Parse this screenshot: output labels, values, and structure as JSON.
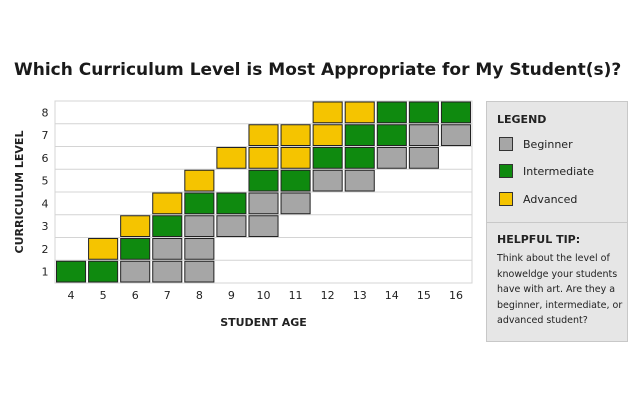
{
  "chart_data": {
    "type": "bar",
    "title": "Which Curriculum Level is Most Appropriate for My Student(s)?",
    "xlabel": "STUDENT AGE",
    "ylabel": "CURRICULUM LEVEL",
    "x": [
      4,
      5,
      6,
      7,
      8,
      9,
      10,
      11,
      12,
      13,
      14,
      15,
      16
    ],
    "y_ticks": [
      1,
      2,
      3,
      4,
      5,
      6,
      7,
      8
    ],
    "ylim": [
      0,
      8
    ],
    "grid": true,
    "legend_position": "right",
    "series": [
      {
        "name": "Beginner",
        "color": "#a6a6a6",
        "levels": [
          [],
          [],
          [
            1
          ],
          [
            1,
            2
          ],
          [
            1,
            2,
            3
          ],
          [
            3
          ],
          [
            3,
            4
          ],
          [
            4
          ],
          [
            5
          ],
          [
            5
          ],
          [
            6
          ],
          [
            6,
            7
          ],
          [
            7
          ]
        ]
      },
      {
        "name": "Intermediate",
        "color": "#0f8a0f",
        "levels": [
          [
            1
          ],
          [
            1
          ],
          [
            2
          ],
          [
            3
          ],
          [
            4
          ],
          [
            4
          ],
          [
            5
          ],
          [
            5
          ],
          [
            6
          ],
          [
            6,
            7
          ],
          [
            7,
            8
          ],
          [
            8
          ],
          [
            8
          ]
        ]
      },
      {
        "name": "Advanced",
        "color": "#f5c400",
        "levels": [
          [],
          [
            2
          ],
          [
            3
          ],
          [
            4
          ],
          [
            5
          ],
          [
            6
          ],
          [
            6,
            7
          ],
          [
            6,
            7
          ],
          [
            7,
            8
          ],
          [
            8
          ],
          [],
          [],
          []
        ]
      }
    ]
  },
  "legend": {
    "heading": "LEGEND",
    "items": [
      {
        "label": "Beginner",
        "color": "#a6a6a6"
      },
      {
        "label": "Intermediate",
        "color": "#0f8a0f"
      },
      {
        "label": "Advanced",
        "color": "#f5c400"
      }
    ]
  },
  "tip": {
    "heading": "HELPFUL TIP:",
    "text": "Think about the level of knoweldge your students have with art. Are they a beginner, intermediate, or advanced student?"
  }
}
